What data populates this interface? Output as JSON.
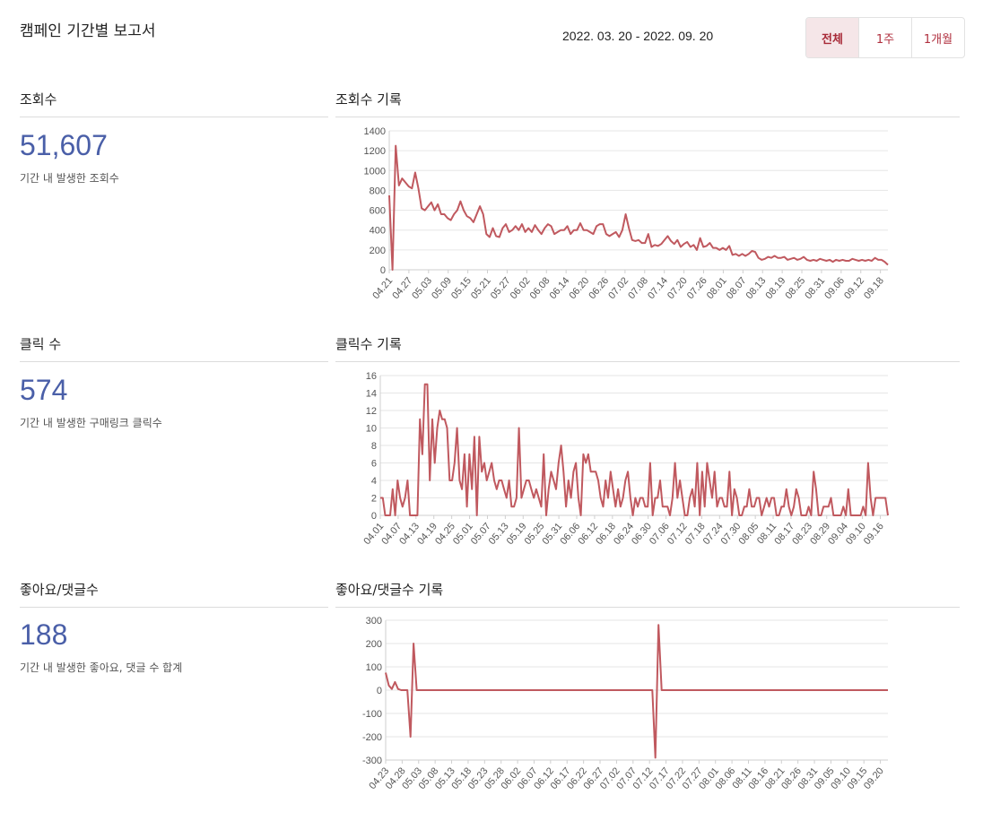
{
  "header": {
    "title": "캠페인 기간별 보고서",
    "date_range": "2022. 03. 20 - 2022. 09. 20",
    "periods": [
      {
        "label": "전체",
        "active": true
      },
      {
        "label": "1주",
        "active": false
      },
      {
        "label": "1개월",
        "active": false
      }
    ]
  },
  "colors": {
    "accent": "#b0303f",
    "metric_value": "#4a5fa8",
    "line": "#c0595f"
  },
  "metrics": [
    {
      "label": "조회수",
      "value": "51,607",
      "desc": "기간 내 발생한 조회수",
      "chart_title": "조회수 기록"
    },
    {
      "label": "클릭 수",
      "value": "574",
      "desc": "기간 내 발생한 구매링크 클릭수",
      "chart_title": "클릭수 기록"
    },
    {
      "label": "좋아요/댓글수",
      "value": "188",
      "desc": "기간 내 발생한 좋아요, 댓글 수 합계",
      "chart_title": "좋아요/댓글수 기록"
    }
  ],
  "chart_data": [
    {
      "type": "line",
      "title": "조회수 기록",
      "ylim": [
        0,
        1400
      ],
      "yticks": [
        0,
        200,
        400,
        600,
        800,
        1000,
        1200,
        1400
      ],
      "xticks": [
        "04.21",
        "04.27",
        "05.03",
        "05.09",
        "05.15",
        "05.21",
        "05.27",
        "06.02",
        "06.08",
        "06.14",
        "06.20",
        "06.26",
        "07.02",
        "07.08",
        "07.14",
        "07.20",
        "07.26",
        "08.01",
        "08.07",
        "08.13",
        "08.19",
        "08.25",
        "08.31",
        "09.06",
        "09.12",
        "09.18"
      ],
      "grid": true,
      "values": [
        750,
        0,
        1250,
        850,
        920,
        880,
        840,
        820,
        980,
        820,
        620,
        600,
        640,
        680,
        600,
        660,
        560,
        560,
        520,
        500,
        560,
        600,
        690,
        600,
        540,
        520,
        480,
        560,
        640,
        560,
        360,
        330,
        420,
        340,
        330,
        420,
        460,
        380,
        400,
        440,
        400,
        460,
        380,
        420,
        380,
        450,
        400,
        360,
        420,
        460,
        440,
        360,
        380,
        400,
        400,
        440,
        360,
        400,
        400,
        470,
        400,
        400,
        380,
        360,
        440,
        460,
        460,
        360,
        340,
        360,
        380,
        330,
        400,
        560,
        420,
        300,
        290,
        300,
        270,
        270,
        360,
        230,
        250,
        240,
        260,
        300,
        340,
        290,
        260,
        300,
        230,
        260,
        280,
        230,
        250,
        200,
        320,
        230,
        240,
        270,
        220,
        220,
        200,
        220,
        200,
        240,
        150,
        160,
        140,
        160,
        140,
        160,
        190,
        180,
        120,
        100,
        110,
        130,
        120,
        140,
        120,
        120,
        130,
        100,
        110,
        120,
        100,
        110,
        130,
        100,
        90,
        100,
        90,
        110,
        100,
        90,
        100,
        80,
        100,
        90,
        100,
        90,
        90,
        110,
        100,
        90,
        100,
        90,
        100,
        90,
        120,
        100,
        100,
        80,
        50
      ]
    },
    {
      "type": "line",
      "title": "클릭수 기록",
      "ylim": [
        0,
        16
      ],
      "yticks": [
        0,
        2,
        4,
        6,
        8,
        10,
        12,
        14,
        16
      ],
      "xticks": [
        "04.01",
        "04.07",
        "04.13",
        "04.19",
        "04.25",
        "05.01",
        "05.07",
        "05.13",
        "05.19",
        "05.25",
        "05.31",
        "06.06",
        "06.12",
        "06.18",
        "06.24",
        "06.30",
        "07.06",
        "07.12",
        "07.18",
        "07.24",
        "07.30",
        "08.05",
        "08.11",
        "08.17",
        "08.23",
        "08.29",
        "09.04",
        "09.10",
        "09.16"
      ],
      "grid": true,
      "values": [
        2,
        2,
        0,
        0,
        0,
        3,
        0,
        4,
        2,
        1,
        2,
        4,
        0,
        0,
        0,
        0,
        11,
        7,
        15,
        15,
        4,
        11,
        6,
        10,
        12,
        11,
        11,
        10,
        4,
        4,
        6,
        10,
        4,
        3,
        7,
        1,
        7,
        3,
        9,
        0,
        9,
        5,
        6,
        4,
        5,
        6,
        4,
        3,
        4,
        4,
        3,
        2,
        4,
        1,
        1,
        2,
        10,
        2,
        3,
        4,
        4,
        3,
        2,
        3,
        2,
        1,
        7,
        0,
        3,
        5,
        4,
        3,
        6,
        8,
        5,
        1,
        4,
        2,
        5,
        6,
        2,
        0,
        7,
        6,
        7,
        5,
        5,
        5,
        4,
        2,
        1,
        4,
        2,
        5,
        3,
        1,
        3,
        1,
        2,
        4,
        5,
        2,
        0,
        2,
        1,
        2,
        2,
        1,
        1,
        6,
        0,
        2,
        2,
        4,
        1,
        1,
        1,
        0,
        2,
        6,
        2,
        4,
        2,
        0,
        0,
        2,
        3,
        1,
        6,
        0,
        5,
        1,
        6,
        4,
        2,
        5,
        1,
        2,
        2,
        1,
        1,
        5,
        0,
        3,
        2,
        0,
        0,
        1,
        1,
        3,
        1,
        1,
        2,
        2,
        0,
        1,
        2,
        1,
        2,
        2,
        0,
        0,
        1,
        1,
        3,
        1,
        0,
        1,
        3,
        2,
        0,
        0,
        0,
        1,
        0,
        5,
        3,
        0,
        0,
        1,
        1,
        1,
        2,
        0,
        0,
        0,
        0,
        1,
        0,
        3,
        0,
        0,
        0,
        0,
        0,
        1,
        0,
        6,
        2,
        0,
        2,
        2,
        2,
        2,
        2,
        0
      ]
    },
    {
      "type": "line",
      "title": "좋아요/댓글수 기록",
      "ylim": [
        -300,
        300
      ],
      "yticks": [
        -300,
        -200,
        -100,
        0,
        100,
        200,
        300
      ],
      "xticks": [
        "04.23",
        "04.28",
        "05.03",
        "05.08",
        "05.13",
        "05.18",
        "05.23",
        "05.28",
        "06.02",
        "06.07",
        "06.12",
        "06.17",
        "06.22",
        "06.27",
        "07.02",
        "07.07",
        "07.12",
        "07.17",
        "07.22",
        "07.27",
        "08.01",
        "08.06",
        "08.11",
        "08.16",
        "08.21",
        "08.26",
        "08.31",
        "09.05",
        "09.10",
        "09.15",
        "09.20"
      ],
      "grid": true,
      "values": [
        75,
        20,
        5,
        35,
        5,
        0,
        0,
        0,
        -200,
        200,
        0,
        0,
        0,
        0,
        0,
        0,
        0,
        0,
        0,
        0,
        0,
        0,
        0,
        0,
        0,
        0,
        0,
        0,
        0,
        0,
        0,
        0,
        0,
        0,
        0,
        0,
        0,
        0,
        0,
        0,
        0,
        0,
        0,
        0,
        0,
        0,
        0,
        0,
        0,
        0,
        0,
        0,
        0,
        0,
        0,
        0,
        0,
        0,
        0,
        0,
        0,
        0,
        0,
        0,
        0,
        0,
        0,
        0,
        0,
        0,
        0,
        0,
        0,
        0,
        0,
        0,
        0,
        0,
        0,
        0,
        0,
        0,
        0,
        0,
        0,
        0,
        0,
        -290,
        280,
        0,
        0,
        0,
        0,
        0,
        0,
        0,
        0,
        0,
        0,
        0,
        0,
        0,
        0,
        0,
        0,
        0,
        0,
        0,
        0,
        0,
        0,
        0,
        0,
        0,
        0,
        0,
        0,
        0,
        0,
        0,
        0,
        0,
        0,
        0,
        0,
        0,
        0,
        0,
        0,
        0,
        0,
        0,
        0,
        0,
        0,
        0,
        0,
        0,
        0,
        0,
        0,
        0,
        0,
        0,
        0,
        0,
        0,
        0,
        0,
        0,
        0,
        0,
        0,
        0,
        0,
        0,
        0,
        0,
        0,
        0,
        0,
        0,
        0
      ]
    }
  ]
}
